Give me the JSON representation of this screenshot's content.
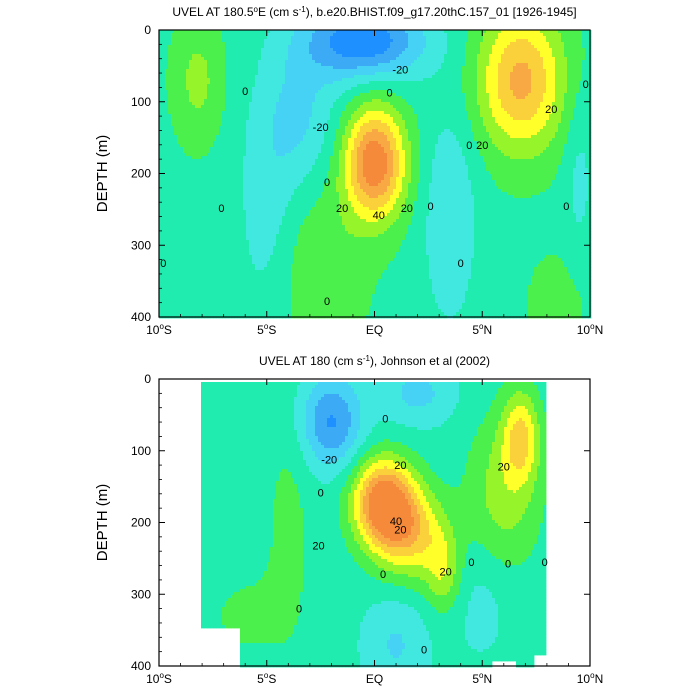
{
  "chart_data": [
    {
      "type": "contour",
      "title": "UVEL AT 180.5°E (cm s⁻¹), b.e20.BHIST.f09_g17.20thC.157_01 [1926-1945]",
      "title_parts": {
        "a": "UVEL AT 180.5",
        "deg": "o",
        "b": "E (cm s",
        "sup": "-1",
        "c": "), b.e20.BHIST.f09_g17.20thC.157_01 [1926-1945]"
      },
      "ylabel": "DEPTH (m)",
      "xlim": [
        -10,
        10
      ],
      "ylim": [
        400,
        0
      ],
      "x_ticks": [
        {
          "value": -10,
          "num": "10",
          "deg": "o",
          "hem": "S"
        },
        {
          "value": -5,
          "num": "5",
          "deg": "o",
          "hem": "S"
        },
        {
          "value": 0,
          "num": "EQ",
          "deg": "",
          "hem": ""
        },
        {
          "value": 5,
          "num": "5",
          "deg": "o",
          "hem": "N"
        },
        {
          "value": 10,
          "num": "10",
          "deg": "o",
          "hem": "N"
        }
      ],
      "y_ticks": [
        0,
        100,
        200,
        300,
        400
      ],
      "contour_interval": 10,
      "features": [
        {
          "kind": "jet",
          "name": "EUC",
          "lon": 0.0,
          "depth": 185,
          "max": 60
        },
        {
          "kind": "jet",
          "name": "NECC",
          "lon": 6.8,
          "depth": 70,
          "max": 40
        },
        {
          "kind": "min",
          "name": "SEC",
          "lon": -0.5,
          "depth": 20,
          "min": -40
        }
      ],
      "contour_labels": [
        {
          "text": "-20",
          "lon": 1.2,
          "depth": 55
        },
        {
          "text": "-20",
          "lon": -2.5,
          "depth": 135
        },
        {
          "text": "20",
          "lon": 5.0,
          "depth": 160
        },
        {
          "text": "20",
          "lon": 8.2,
          "depth": 110
        },
        {
          "text": "20",
          "lon": -1.5,
          "depth": 248
        },
        {
          "text": "20",
          "lon": 1.5,
          "depth": 248
        },
        {
          "text": "40",
          "lon": 0.2,
          "depth": 258
        },
        {
          "text": "0",
          "lon": -6.0,
          "depth": 85
        },
        {
          "text": "0",
          "lon": 0.7,
          "depth": 87
        },
        {
          "text": "0",
          "lon": -2.2,
          "depth": 212
        },
        {
          "text": "0",
          "lon": -7.1,
          "depth": 248
        },
        {
          "text": "0",
          "lon": 2.6,
          "depth": 245
        },
        {
          "text": "0",
          "lon": 4.4,
          "depth": 160
        },
        {
          "text": "0",
          "lon": 8.9,
          "depth": 245
        },
        {
          "text": "0",
          "lon": 9.8,
          "depth": 75
        },
        {
          "text": "0",
          "lon": -9.8,
          "depth": 325
        },
        {
          "text": "0",
          "lon": 4.0,
          "depth": 325
        },
        {
          "text": "0",
          "lon": -2.2,
          "depth": 378
        }
      ]
    },
    {
      "type": "contour",
      "title": "UVEL AT 180 (cm s⁻¹), Johnson et al (2002)",
      "title_parts": {
        "a": "UVEL AT 180 (cm s",
        "deg": "",
        "b": "",
        "sup": "-1",
        "c": "), Johnson et al (2002)"
      },
      "ylabel": "DEPTH (m)",
      "xlim": [
        -10,
        10
      ],
      "ylim": [
        400,
        0
      ],
      "x_ticks": [
        {
          "value": -10,
          "num": "10",
          "deg": "o",
          "hem": "S"
        },
        {
          "value": -5,
          "num": "5",
          "deg": "o",
          "hem": "S"
        },
        {
          "value": 0,
          "num": "EQ",
          "deg": "",
          "hem": ""
        },
        {
          "value": 5,
          "num": "5",
          "deg": "o",
          "hem": "N"
        },
        {
          "value": 10,
          "num": "10",
          "deg": "o",
          "hem": "N"
        }
      ],
      "y_ticks": [
        0,
        100,
        200,
        300,
        400
      ],
      "contour_interval": 10,
      "data_extent_lon": [
        -8.0,
        8.0
      ],
      "features": [
        {
          "kind": "jet",
          "name": "EUC",
          "lon": 0.5,
          "depth": 170,
          "max": 60
        },
        {
          "kind": "jet",
          "name": "NECC",
          "lon": 6.8,
          "depth": 75,
          "max": 30
        },
        {
          "kind": "min",
          "name": "SEC",
          "lon": -2.0,
          "depth": 60,
          "min": -30
        }
      ],
      "contour_labels": [
        {
          "text": "-20",
          "lon": -2.1,
          "depth": 112
        },
        {
          "text": "20",
          "lon": 1.2,
          "depth": 120
        },
        {
          "text": "20",
          "lon": 6.0,
          "depth": 122
        },
        {
          "text": "20",
          "lon": -2.6,
          "depth": 232
        },
        {
          "text": "20",
          "lon": 1.2,
          "depth": 210
        },
        {
          "text": "20",
          "lon": 3.3,
          "depth": 268
        },
        {
          "text": "40",
          "lon": 1.0,
          "depth": 198
        },
        {
          "text": "0",
          "lon": 0.5,
          "depth": 55
        },
        {
          "text": "0",
          "lon": -2.5,
          "depth": 158
        },
        {
          "text": "0",
          "lon": 0.4,
          "depth": 272
        },
        {
          "text": "0",
          "lon": 4.5,
          "depth": 255
        },
        {
          "text": "0",
          "lon": 6.2,
          "depth": 257
        },
        {
          "text": "0",
          "lon": 7.9,
          "depth": 255
        },
        {
          "text": "0",
          "lon": -3.5,
          "depth": 320
        },
        {
          "text": "0",
          "lon": 2.3,
          "depth": 377
        }
      ]
    }
  ],
  "colors": {
    "ul_m40": "#1e90ff",
    "ul_m30": "#3caaf5",
    "ul_m20": "#46d2f5",
    "ul_m10": "#40e8e0",
    "ul_0": "#20ecb0",
    "ul_10": "#4cf04c",
    "ul_20": "#96f52a",
    "ul_30": "#ffff2a",
    "ul_40": "#fad13a",
    "ul_50": "#f9a944",
    "ul_60": "#f58a3a"
  }
}
